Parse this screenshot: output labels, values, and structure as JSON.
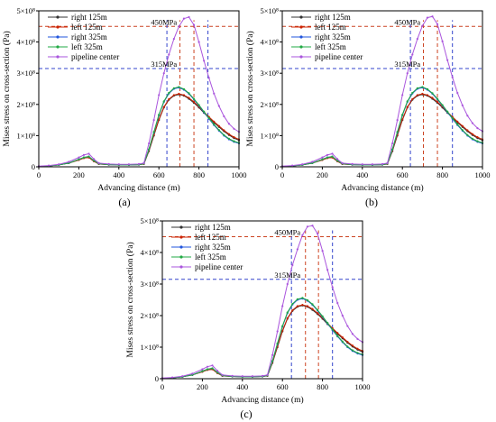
{
  "chart_data": [
    {
      "panel": "(a)",
      "type": "line",
      "xlabel": "Advancing distance (m)",
      "ylabel": "Mises stress on cross-section  (Pa)",
      "xlim": [
        0,
        1000
      ],
      "ylim": [
        0,
        500000000
      ],
      "xticks": [
        0,
        200,
        400,
        600,
        800,
        1000
      ],
      "yticks": [
        0,
        100000000,
        200000000,
        300000000,
        400000000,
        500000000
      ],
      "ytick_labels": [
        "0",
        "1×10⁸",
        "2×10⁸",
        "3×10⁸",
        "4×10⁸",
        "5×10⁸"
      ],
      "legend_position": "top-left",
      "hlines": [
        {
          "value": 450000000,
          "label": "450MPa",
          "color": "#cc4422"
        },
        {
          "value": 315000000,
          "label": "315MPa",
          "color": "#3344cc"
        }
      ],
      "vlines": [
        {
          "x": 640,
          "color": "#3344cc"
        },
        {
          "x": 705,
          "color": "#cc4422"
        },
        {
          "x": 775,
          "color": "#cc4422"
        },
        {
          "x": 845,
          "color": "#3344cc"
        }
      ],
      "x": [
        0,
        50,
        100,
        150,
        200,
        225,
        250,
        275,
        300,
        350,
        400,
        450,
        500,
        525,
        550,
        575,
        600,
        625,
        650,
        675,
        700,
        725,
        750,
        775,
        800,
        825,
        850,
        875,
        900,
        925,
        950,
        975,
        1000
      ],
      "series": [
        {
          "name": "right 125m",
          "color": "#333333",
          "values": [
            1000000,
            3000000,
            6000000,
            12000000,
            22000000,
            28000000,
            30000000,
            18000000,
            9000000,
            7000000,
            6000000,
            6000000,
            7000000,
            9000000,
            50000000,
            100000000,
            150000000,
            190000000,
            215000000,
            228000000,
            232000000,
            228000000,
            218000000,
            205000000,
            190000000,
            173000000,
            157000000,
            142000000,
            128000000,
            114000000,
            102000000,
            92000000,
            85000000
          ]
        },
        {
          "name": "left 125m",
          "color": "#cc2200",
          "values": [
            1000000,
            3000000,
            6000000,
            12000000,
            22000000,
            28000000,
            30000000,
            18000000,
            9000000,
            7000000,
            6000000,
            6000000,
            7000000,
            9000000,
            52000000,
            103000000,
            152000000,
            192000000,
            217000000,
            230000000,
            234000000,
            230000000,
            221000000,
            208000000,
            193000000,
            176000000,
            160000000,
            145000000,
            131000000,
            117000000,
            105000000,
            95000000,
            88000000
          ]
        },
        {
          "name": "right 325m",
          "color": "#2255dd",
          "values": [
            1000000,
            3000000,
            6000000,
            12000000,
            24000000,
            30000000,
            33000000,
            20000000,
            10000000,
            7000000,
            6000000,
            6000000,
            7000000,
            10000000,
            55000000,
            110000000,
            165000000,
            208000000,
            235000000,
            250000000,
            254000000,
            247000000,
            234000000,
            216000000,
            196000000,
            175000000,
            154000000,
            134000000,
            116000000,
            100000000,
            88000000,
            80000000,
            75000000
          ]
        },
        {
          "name": "left 325m",
          "color": "#22aa44",
          "values": [
            1000000,
            3000000,
            6000000,
            12000000,
            24000000,
            30000000,
            33000000,
            20000000,
            10000000,
            7000000,
            6000000,
            6000000,
            7000000,
            10000000,
            56000000,
            112000000,
            167000000,
            210000000,
            237000000,
            252000000,
            256000000,
            249000000,
            236000000,
            218000000,
            198000000,
            177000000,
            156000000,
            136000000,
            118000000,
            102000000,
            90000000,
            82000000,
            77000000
          ]
        },
        {
          "name": "pipeline center",
          "color": "#aa55dd",
          "values": [
            2000000,
            4000000,
            8000000,
            16000000,
            30000000,
            38000000,
            42000000,
            25000000,
            12000000,
            9000000,
            8000000,
            8000000,
            9000000,
            12000000,
            75000000,
            150000000,
            230000000,
            300000000,
            360000000,
            410000000,
            450000000,
            475000000,
            480000000,
            455000000,
            400000000,
            340000000,
            285000000,
            235000000,
            195000000,
            162000000,
            138000000,
            122000000,
            112000000
          ]
        }
      ]
    },
    {
      "panel": "(b)",
      "type": "line",
      "xlabel": "Advancing distance (m)",
      "ylabel": "Mises stress on cross-section  (Pa)",
      "xlim": [
        0,
        1000
      ],
      "ylim": [
        0,
        500000000
      ],
      "xticks": [
        0,
        200,
        400,
        600,
        800,
        1000
      ],
      "yticks": [
        0,
        100000000,
        200000000,
        300000000,
        400000000,
        500000000
      ],
      "ytick_labels": [
        "0",
        "1×10⁸",
        "2×10⁸",
        "3×10⁸",
        "4×10⁸",
        "5×10⁸"
      ],
      "legend_position": "top-left",
      "hlines": [
        {
          "value": 450000000,
          "label": "450MPa",
          "color": "#cc4422"
        },
        {
          "value": 315000000,
          "label": "315MPa",
          "color": "#3344cc"
        }
      ],
      "vlines": [
        {
          "x": 640,
          "color": "#3344cc"
        },
        {
          "x": 705,
          "color": "#cc4422"
        },
        {
          "x": 775,
          "color": "#cc4422"
        },
        {
          "x": 850,
          "color": "#3344cc"
        }
      ],
      "x": [
        0,
        50,
        100,
        150,
        200,
        225,
        250,
        275,
        300,
        350,
        400,
        450,
        500,
        525,
        550,
        575,
        600,
        625,
        650,
        675,
        700,
        725,
        750,
        775,
        800,
        825,
        850,
        875,
        900,
        925,
        950,
        975,
        1000
      ],
      "series": [
        {
          "name": "right 125m",
          "color": "#333333",
          "values": [
            1000000,
            3000000,
            6000000,
            12000000,
            22000000,
            28000000,
            30000000,
            18000000,
            9000000,
            7000000,
            6000000,
            6000000,
            7000000,
            9000000,
            50000000,
            100000000,
            150000000,
            190000000,
            215000000,
            228000000,
            232000000,
            228000000,
            218000000,
            205000000,
            190000000,
            173000000,
            157000000,
            142000000,
            128000000,
            114000000,
            102000000,
            92000000,
            85000000
          ]
        },
        {
          "name": "left 125m",
          "color": "#cc2200",
          "values": [
            1000000,
            3000000,
            6000000,
            12000000,
            22000000,
            28000000,
            30000000,
            18000000,
            9000000,
            7000000,
            6000000,
            6000000,
            7000000,
            9000000,
            52000000,
            103000000,
            152000000,
            192000000,
            217000000,
            230000000,
            234000000,
            230000000,
            221000000,
            208000000,
            193000000,
            176000000,
            160000000,
            145000000,
            131000000,
            117000000,
            105000000,
            95000000,
            88000000
          ]
        },
        {
          "name": "right 325m",
          "color": "#2255dd",
          "values": [
            1000000,
            3000000,
            6000000,
            12000000,
            24000000,
            30000000,
            33000000,
            20000000,
            10000000,
            7000000,
            6000000,
            6000000,
            7000000,
            10000000,
            55000000,
            110000000,
            165000000,
            208000000,
            235000000,
            250000000,
            254000000,
            247000000,
            234000000,
            216000000,
            196000000,
            175000000,
            154000000,
            134000000,
            116000000,
            100000000,
            88000000,
            80000000,
            75000000
          ]
        },
        {
          "name": "left 325m",
          "color": "#22aa44",
          "values": [
            1000000,
            3000000,
            6000000,
            12000000,
            24000000,
            30000000,
            33000000,
            20000000,
            10000000,
            7000000,
            6000000,
            6000000,
            7000000,
            10000000,
            56000000,
            112000000,
            167000000,
            210000000,
            237000000,
            252000000,
            256000000,
            249000000,
            236000000,
            218000000,
            198000000,
            177000000,
            156000000,
            136000000,
            118000000,
            102000000,
            90000000,
            82000000,
            77000000
          ]
        },
        {
          "name": "pipeline center",
          "color": "#aa55dd",
          "values": [
            2000000,
            4000000,
            8000000,
            16000000,
            30000000,
            38000000,
            42000000,
            25000000,
            12000000,
            9000000,
            8000000,
            8000000,
            9000000,
            12000000,
            75000000,
            150000000,
            230000000,
            300000000,
            360000000,
            410000000,
            452000000,
            478000000,
            482000000,
            457000000,
            402000000,
            342000000,
            287000000,
            237000000,
            197000000,
            164000000,
            140000000,
            124000000,
            114000000
          ]
        }
      ]
    },
    {
      "panel": "(c)",
      "type": "line",
      "xlabel": "Advancing distance (m)",
      "ylabel": "Mises stress on cross-section  (Pa)",
      "xlim": [
        0,
        1000
      ],
      "ylim": [
        0,
        500000000
      ],
      "xticks": [
        0,
        200,
        400,
        600,
        800,
        1000
      ],
      "yticks": [
        0,
        100000000,
        200000000,
        300000000,
        400000000,
        500000000
      ],
      "ytick_labels": [
        "0",
        "1×10⁸",
        "2×10⁸",
        "3×10⁸",
        "4×10⁸",
        "5×10⁸"
      ],
      "legend_position": "top-left",
      "hlines": [
        {
          "value": 450000000,
          "label": "450MPa",
          "color": "#cc4422"
        },
        {
          "value": 315000000,
          "label": "315MPa",
          "color": "#3344cc"
        }
      ],
      "vlines": [
        {
          "x": 645,
          "color": "#3344cc"
        },
        {
          "x": 715,
          "color": "#cc4422"
        },
        {
          "x": 780,
          "color": "#cc4422"
        },
        {
          "x": 850,
          "color": "#3344cc"
        }
      ],
      "x": [
        0,
        50,
        100,
        150,
        200,
        225,
        250,
        275,
        300,
        350,
        400,
        450,
        500,
        525,
        550,
        575,
        600,
        625,
        650,
        675,
        700,
        725,
        750,
        775,
        800,
        825,
        850,
        875,
        900,
        925,
        950,
        975,
        1000
      ],
      "series": [
        {
          "name": "right 125m",
          "color": "#333333",
          "values": [
            1000000,
            3000000,
            6000000,
            12000000,
            22000000,
            28000000,
            30000000,
            18000000,
            9000000,
            7000000,
            6000000,
            6000000,
            7000000,
            9000000,
            50000000,
            100000000,
            150000000,
            190000000,
            215000000,
            228000000,
            232000000,
            228000000,
            218000000,
            205000000,
            190000000,
            173000000,
            157000000,
            142000000,
            128000000,
            114000000,
            102000000,
            92000000,
            85000000
          ]
        },
        {
          "name": "left 125m",
          "color": "#cc2200",
          "values": [
            1000000,
            3000000,
            6000000,
            12000000,
            22000000,
            28000000,
            30000000,
            18000000,
            9000000,
            7000000,
            6000000,
            6000000,
            7000000,
            9000000,
            52000000,
            103000000,
            152000000,
            192000000,
            217000000,
            230000000,
            234000000,
            230000000,
            221000000,
            208000000,
            193000000,
            176000000,
            160000000,
            145000000,
            131000000,
            117000000,
            105000000,
            95000000,
            88000000
          ]
        },
        {
          "name": "right 325m",
          "color": "#2255dd",
          "values": [
            1000000,
            3000000,
            6000000,
            12000000,
            24000000,
            30000000,
            33000000,
            20000000,
            10000000,
            7000000,
            6000000,
            6000000,
            7000000,
            10000000,
            55000000,
            110000000,
            165000000,
            208000000,
            235000000,
            250000000,
            254000000,
            247000000,
            234000000,
            216000000,
            196000000,
            175000000,
            154000000,
            134000000,
            116000000,
            100000000,
            88000000,
            80000000,
            75000000
          ]
        },
        {
          "name": "left 325m",
          "color": "#22aa44",
          "values": [
            1000000,
            3000000,
            6000000,
            12000000,
            24000000,
            30000000,
            33000000,
            20000000,
            10000000,
            7000000,
            6000000,
            6000000,
            7000000,
            10000000,
            56000000,
            112000000,
            167000000,
            210000000,
            237000000,
            252000000,
            256000000,
            249000000,
            236000000,
            218000000,
            198000000,
            177000000,
            156000000,
            136000000,
            118000000,
            102000000,
            90000000,
            82000000,
            77000000
          ]
        },
        {
          "name": "pipeline center",
          "color": "#aa55dd",
          "values": [
            2000000,
            4000000,
            8000000,
            16000000,
            30000000,
            38000000,
            42000000,
            25000000,
            12000000,
            9000000,
            8000000,
            8000000,
            9000000,
            12000000,
            75000000,
            150000000,
            230000000,
            300000000,
            360000000,
            410000000,
            455000000,
            482000000,
            485000000,
            460000000,
            405000000,
            345000000,
            290000000,
            240000000,
            200000000,
            167000000,
            142000000,
            126000000,
            116000000
          ]
        }
      ]
    }
  ]
}
